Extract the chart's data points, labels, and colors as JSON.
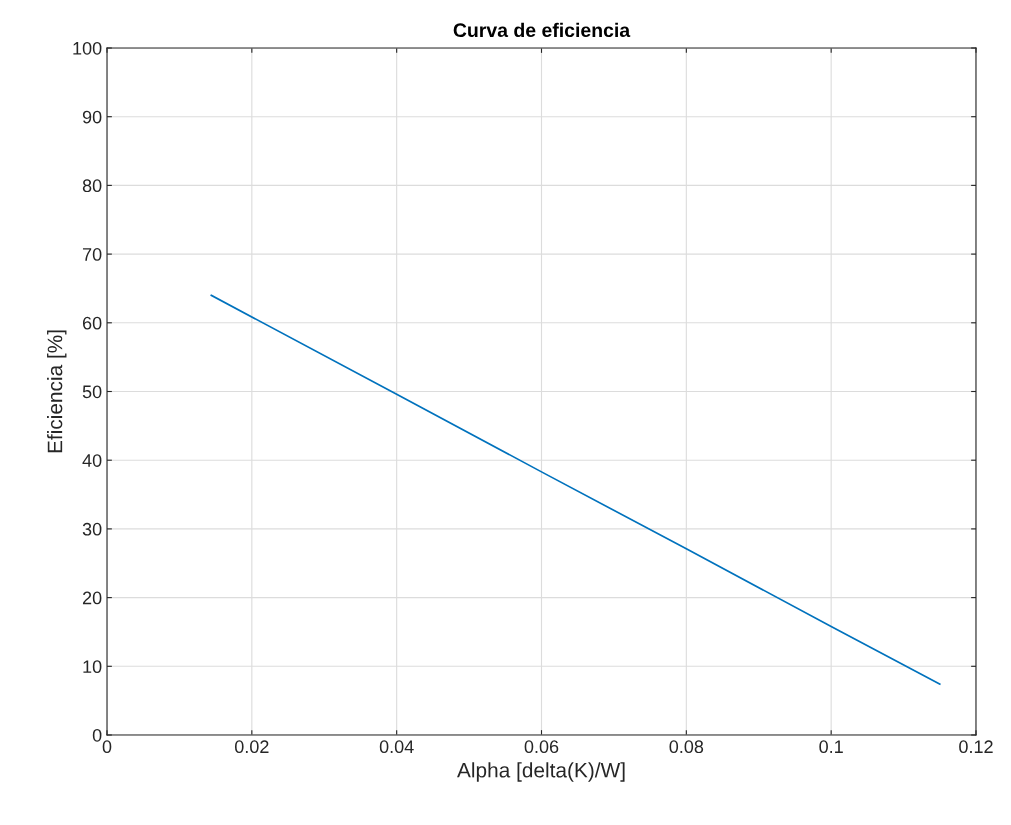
{
  "chart_data": {
    "type": "line",
    "title": "Curva de eficiencia",
    "xlabel": "Alpha [delta(K)/W]",
    "ylabel": "Eficiencia [%]",
    "series": [
      {
        "color": "#0072bd",
        "x": [
          0.0144,
          0.04,
          0.06,
          0.08,
          0.1,
          0.115
        ],
        "values": [
          64,
          49.6,
          38.3,
          27.1,
          15.8,
          7.4
        ]
      }
    ],
    "xlim": [
      0,
      0.12
    ],
    "xticks": [
      0,
      0.02,
      0.04,
      0.06,
      0.08,
      0.1,
      0.12
    ],
    "ylim": [
      0,
      100
    ],
    "yticks": [
      0,
      10,
      20,
      30,
      40,
      50,
      60,
      70,
      80,
      90,
      100
    ],
    "grid": true,
    "marker": "none",
    "line_style": "solid"
  }
}
